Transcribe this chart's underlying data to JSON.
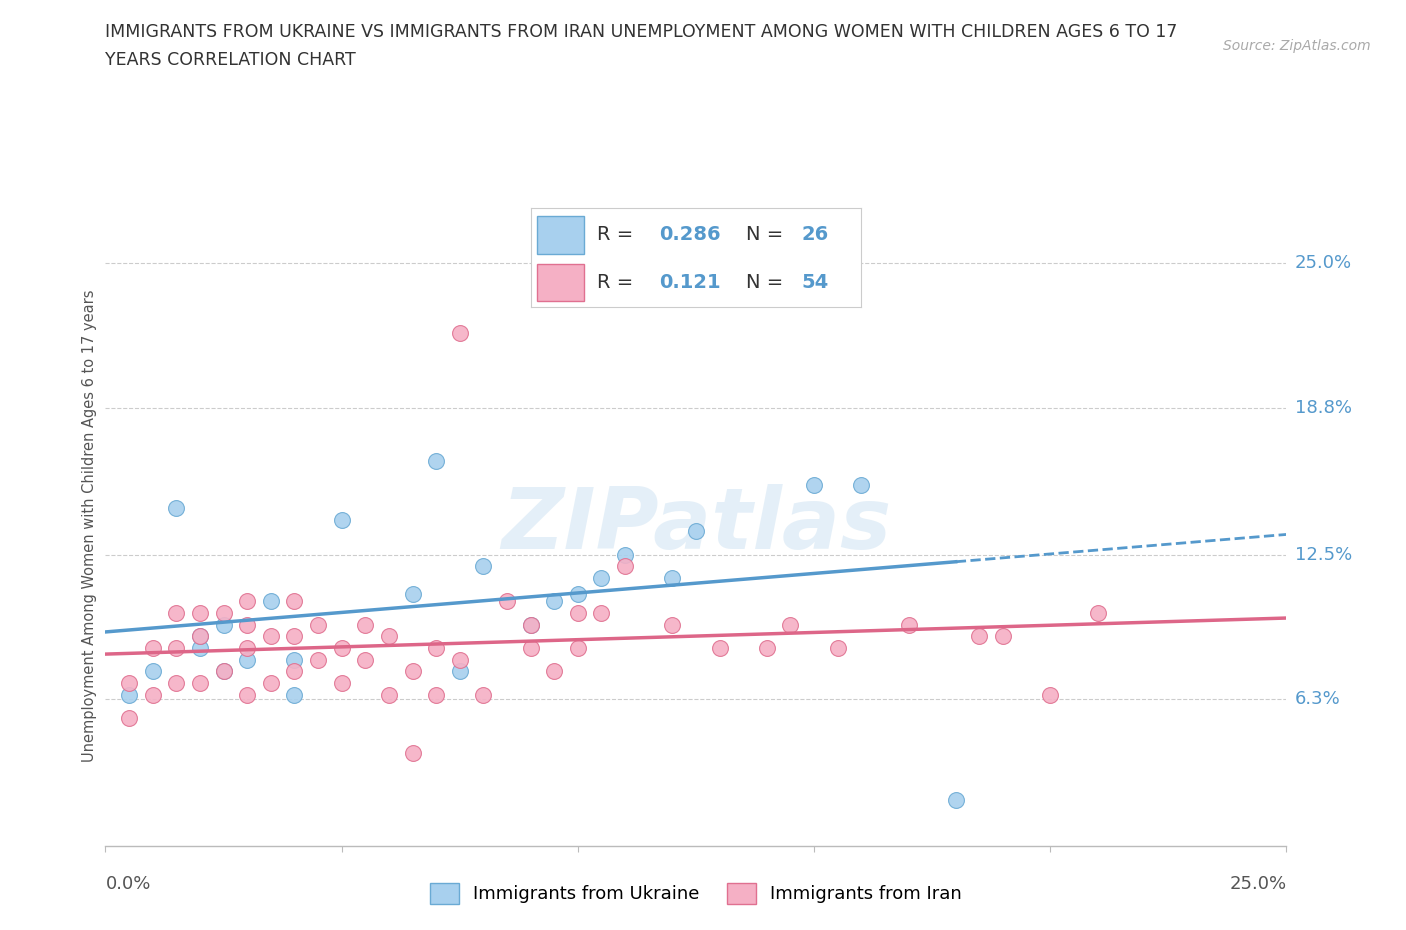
{
  "title_line1": "IMMIGRANTS FROM UKRAINE VS IMMIGRANTS FROM IRAN UNEMPLOYMENT AMONG WOMEN WITH CHILDREN AGES 6 TO 17",
  "title_line2": "YEARS CORRELATION CHART",
  "source_text": "Source: ZipAtlas.com",
  "ylabel": "Unemployment Among Women with Children Ages 6 to 17 years",
  "r_ukraine": 0.286,
  "n_ukraine": 26,
  "r_iran": 0.121,
  "n_iran": 54,
  "ukraine_color_fill": "#A8D0EE",
  "ukraine_color_edge": "#6AAAD4",
  "iran_color_fill": "#F5B0C5",
  "iran_color_edge": "#E07090",
  "ukraine_line_color": "#5599CC",
  "iran_line_color": "#DD6688",
  "right_label_color": "#5599CC",
  "xmin": 0.0,
  "xmax": 0.25,
  "ymin": 0.0,
  "ymax": 0.275,
  "ytick_values": [
    0.063,
    0.125,
    0.188,
    0.25
  ],
  "ytick_labels": [
    "6.3%",
    "12.5%",
    "18.8%",
    "25.0%"
  ],
  "legend_ukraine": "Immigrants from Ukraine",
  "legend_iran": "Immigrants from Iran",
  "watermark": "ZIPatlas",
  "ukraine_x": [
    0.005,
    0.01,
    0.015,
    0.02,
    0.02,
    0.025,
    0.025,
    0.03,
    0.035,
    0.04,
    0.04,
    0.05,
    0.065,
    0.07,
    0.075,
    0.08,
    0.09,
    0.095,
    0.1,
    0.105,
    0.11,
    0.12,
    0.125,
    0.15,
    0.16,
    0.18
  ],
  "ukraine_y": [
    0.065,
    0.075,
    0.145,
    0.085,
    0.09,
    0.075,
    0.095,
    0.08,
    0.105,
    0.065,
    0.08,
    0.14,
    0.108,
    0.165,
    0.075,
    0.12,
    0.095,
    0.105,
    0.108,
    0.115,
    0.125,
    0.115,
    0.135,
    0.155,
    0.155,
    0.02
  ],
  "iran_x": [
    0.005,
    0.005,
    0.01,
    0.01,
    0.015,
    0.015,
    0.015,
    0.02,
    0.02,
    0.02,
    0.025,
    0.025,
    0.03,
    0.03,
    0.03,
    0.03,
    0.035,
    0.035,
    0.04,
    0.04,
    0.04,
    0.045,
    0.045,
    0.05,
    0.05,
    0.055,
    0.055,
    0.06,
    0.06,
    0.065,
    0.07,
    0.07,
    0.075,
    0.075,
    0.08,
    0.085,
    0.09,
    0.09,
    0.095,
    0.1,
    0.1,
    0.105,
    0.11,
    0.12,
    0.13,
    0.14,
    0.145,
    0.155,
    0.17,
    0.185,
    0.19,
    0.2,
    0.21,
    0.065
  ],
  "iran_y": [
    0.055,
    0.07,
    0.065,
    0.085,
    0.07,
    0.085,
    0.1,
    0.07,
    0.09,
    0.1,
    0.075,
    0.1,
    0.065,
    0.085,
    0.095,
    0.105,
    0.07,
    0.09,
    0.075,
    0.09,
    0.105,
    0.08,
    0.095,
    0.07,
    0.085,
    0.08,
    0.095,
    0.065,
    0.09,
    0.075,
    0.065,
    0.085,
    0.22,
    0.08,
    0.065,
    0.105,
    0.085,
    0.095,
    0.075,
    0.085,
    0.1,
    0.1,
    0.12,
    0.095,
    0.085,
    0.085,
    0.095,
    0.085,
    0.095,
    0.09,
    0.09,
    0.065,
    0.1,
    0.04
  ]
}
